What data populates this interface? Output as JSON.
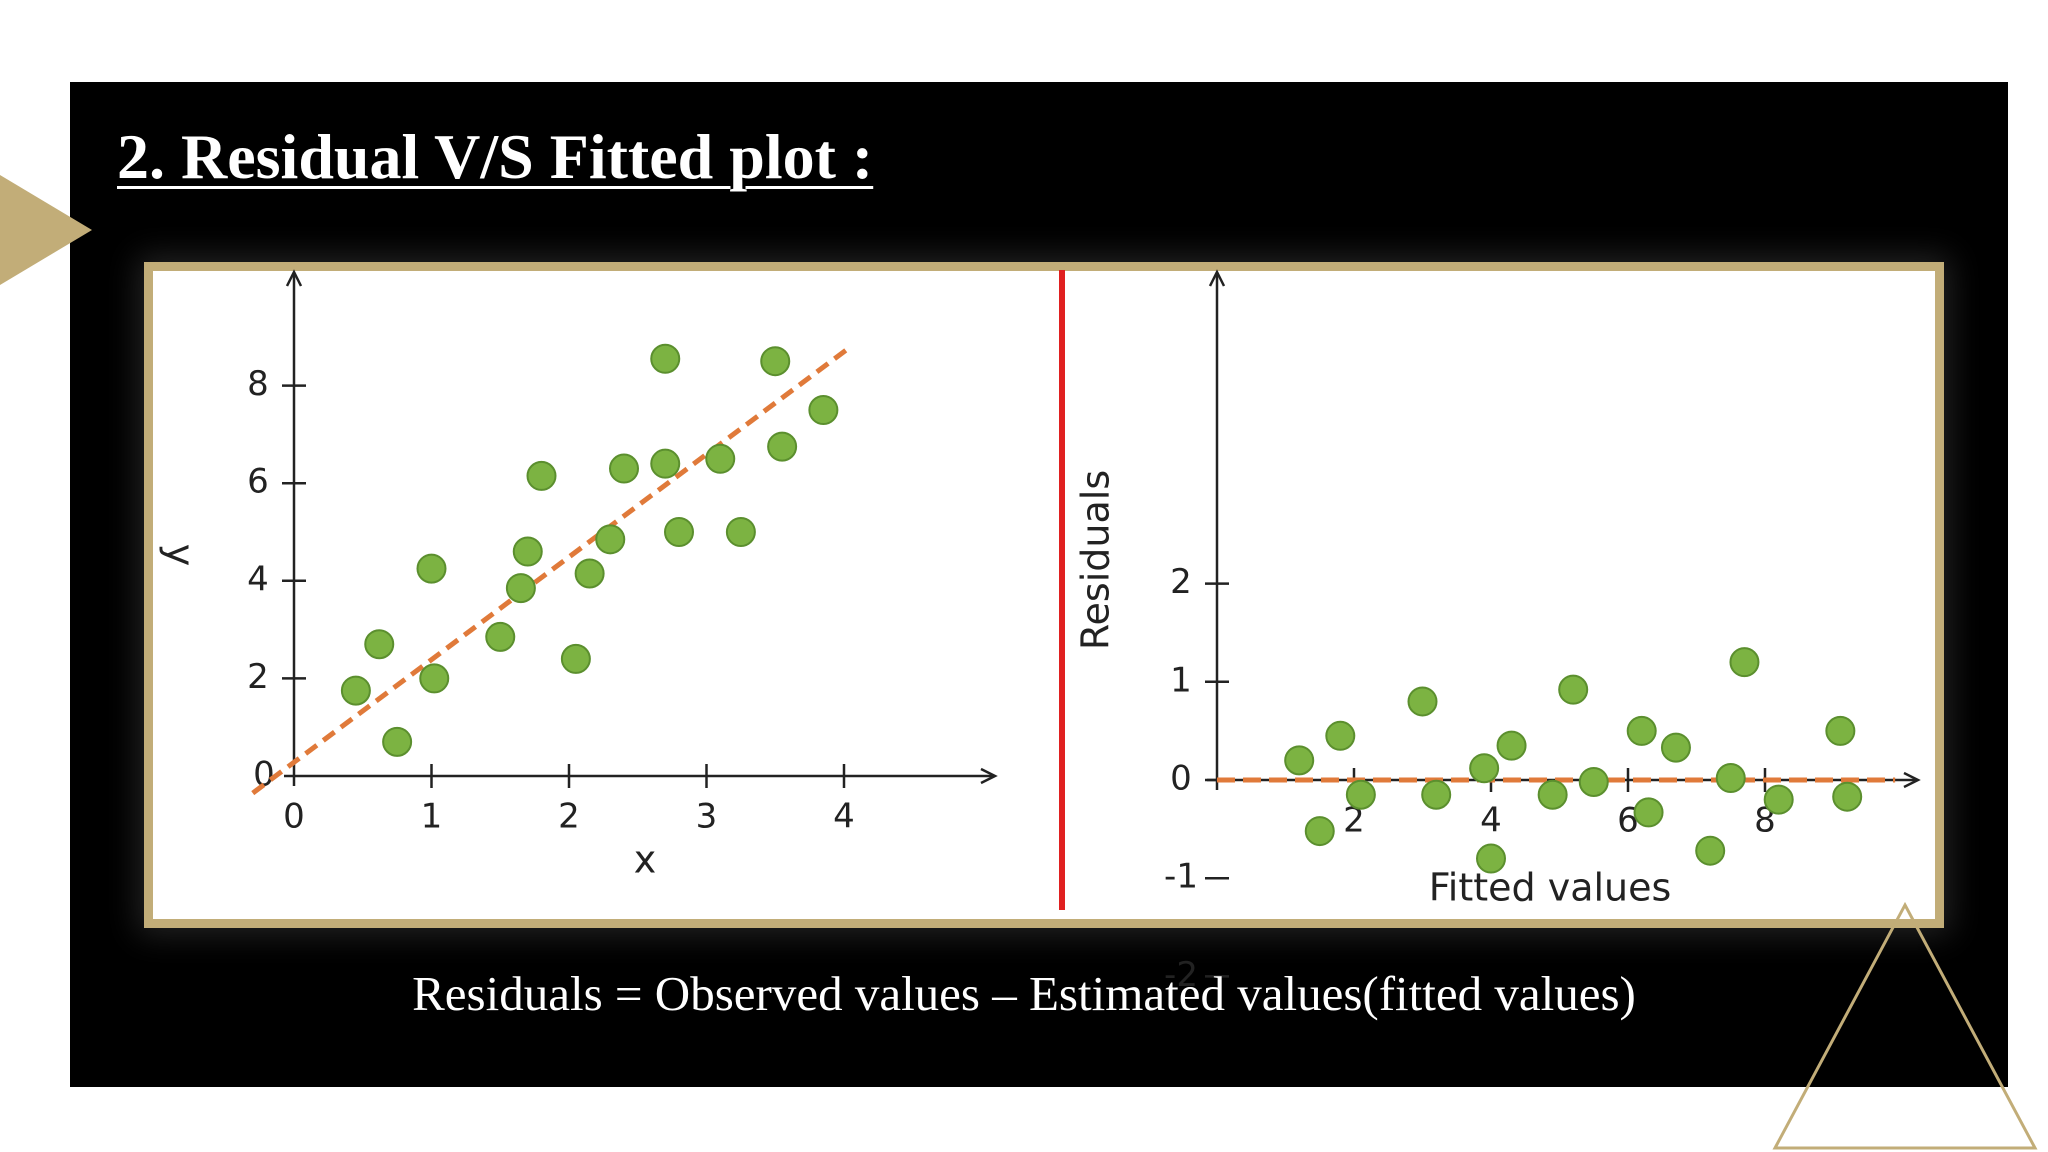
{
  "slide": {
    "title": "2. Residual V/S Fitted plot :",
    "caption": "Residuals = Observed values – Estimated values(fitted values)",
    "colors": {
      "background": "#000000",
      "accent_gold": "#c2ad78",
      "text": "#ffffff",
      "divider_red": "#e02020",
      "point_fill": "#7cb342",
      "fit_line": "#e07a3a"
    }
  },
  "chart_data": [
    {
      "type": "scatter",
      "title": "",
      "xlabel": "x",
      "ylabel": "y",
      "xlim": [
        0,
        5
      ],
      "ylim": [
        0,
        10
      ],
      "xticks": [
        0,
        1,
        2,
        3,
        4
      ],
      "yticks": [
        2,
        4,
        6,
        8
      ],
      "x_tick_labels": [
        "0",
        "1",
        "2",
        "3",
        "4"
      ],
      "y_tick_labels": [
        "2",
        "4",
        "6",
        "8"
      ],
      "origin_label": "0",
      "grid": false,
      "points": {
        "x": [
          0.45,
          0.62,
          0.75,
          1.0,
          1.02,
          1.5,
          1.65,
          1.7,
          1.8,
          2.05,
          2.15,
          2.3,
          2.4,
          2.7,
          2.7,
          2.8,
          3.1,
          3.25,
          3.5,
          3.55,
          3.85
        ],
        "y": [
          1.75,
          2.7,
          0.7,
          4.25,
          2.0,
          2.85,
          3.85,
          4.6,
          6.15,
          2.4,
          4.15,
          4.85,
          6.3,
          8.55,
          6.4,
          5.0,
          6.5,
          5.0,
          8.5,
          6.75,
          7.5
        ]
      },
      "fit_line": {
        "x": [
          -0.3,
          4.05
        ],
        "y": [
          -0.35,
          8.8
        ],
        "style": "dashed"
      }
    },
    {
      "type": "scatter",
      "title": "",
      "xlabel": "Fitted values",
      "ylabel": "Residuals",
      "xlim": [
        0,
        10.2
      ],
      "ylim": [
        -2,
        3
      ],
      "xticks": [
        2,
        4,
        6,
        8
      ],
      "yticks": [
        -2,
        -1,
        0,
        1,
        2
      ],
      "x_tick_labels": [
        "2",
        "4",
        "6",
        "8"
      ],
      "y_tick_labels": [
        "-2",
        "-1",
        "0",
        "1",
        "2"
      ],
      "grid": false,
      "points": {
        "x": [
          1.2,
          1.5,
          1.8,
          2.1,
          3.0,
          3.2,
          3.9,
          4.0,
          4.3,
          4.9,
          5.2,
          5.5,
          6.2,
          6.3,
          6.7,
          7.2,
          7.5,
          7.7,
          8.2,
          9.1,
          9.2
        ],
        "y": [
          0.2,
          -0.52,
          0.45,
          -0.15,
          0.8,
          -0.15,
          0.12,
          -0.8,
          0.35,
          -0.15,
          0.92,
          -0.02,
          0.5,
          -0.33,
          0.33,
          -0.72,
          0.02,
          1.2,
          -0.2,
          0.5,
          -0.17
        ]
      },
      "zero_line": {
        "y": 0,
        "style": "dashed"
      }
    }
  ]
}
